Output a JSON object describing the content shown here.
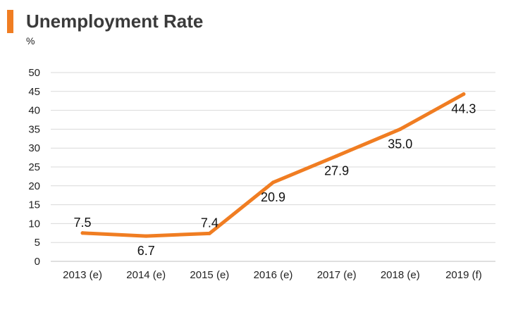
{
  "header": {
    "title": "Unemployment Rate",
    "unit": "%",
    "accent_color": "#f07d22"
  },
  "chart_data": {
    "type": "line",
    "title": "Unemployment Rate",
    "ylabel": "%",
    "xlabel": "",
    "categories": [
      "2013 (e)",
      "2014 (e)",
      "2015 (e)",
      "2016 (e)",
      "2017 (e)",
      "2018 (e)",
      "2019 (f)"
    ],
    "series": [
      {
        "values": [
          7.5,
          6.7,
          7.4,
          20.9,
          27.9,
          35.0,
          44.3
        ],
        "color": "#f07d22"
      }
    ],
    "data_labels": [
      "7.5",
      "6.7",
      "7.4",
      "20.9",
      "27.9",
      "35.0",
      "44.3"
    ],
    "label_side": [
      "above",
      "below",
      "above",
      "below",
      "below",
      "below",
      "below"
    ],
    "ylim": [
      0,
      50
    ],
    "yticks": [
      "0",
      "5",
      "10",
      "15",
      "20",
      "25",
      "30",
      "35",
      "40",
      "45",
      "50"
    ],
    "grid": true,
    "legend": "none",
    "gridline_color": "#d9d9d9"
  }
}
